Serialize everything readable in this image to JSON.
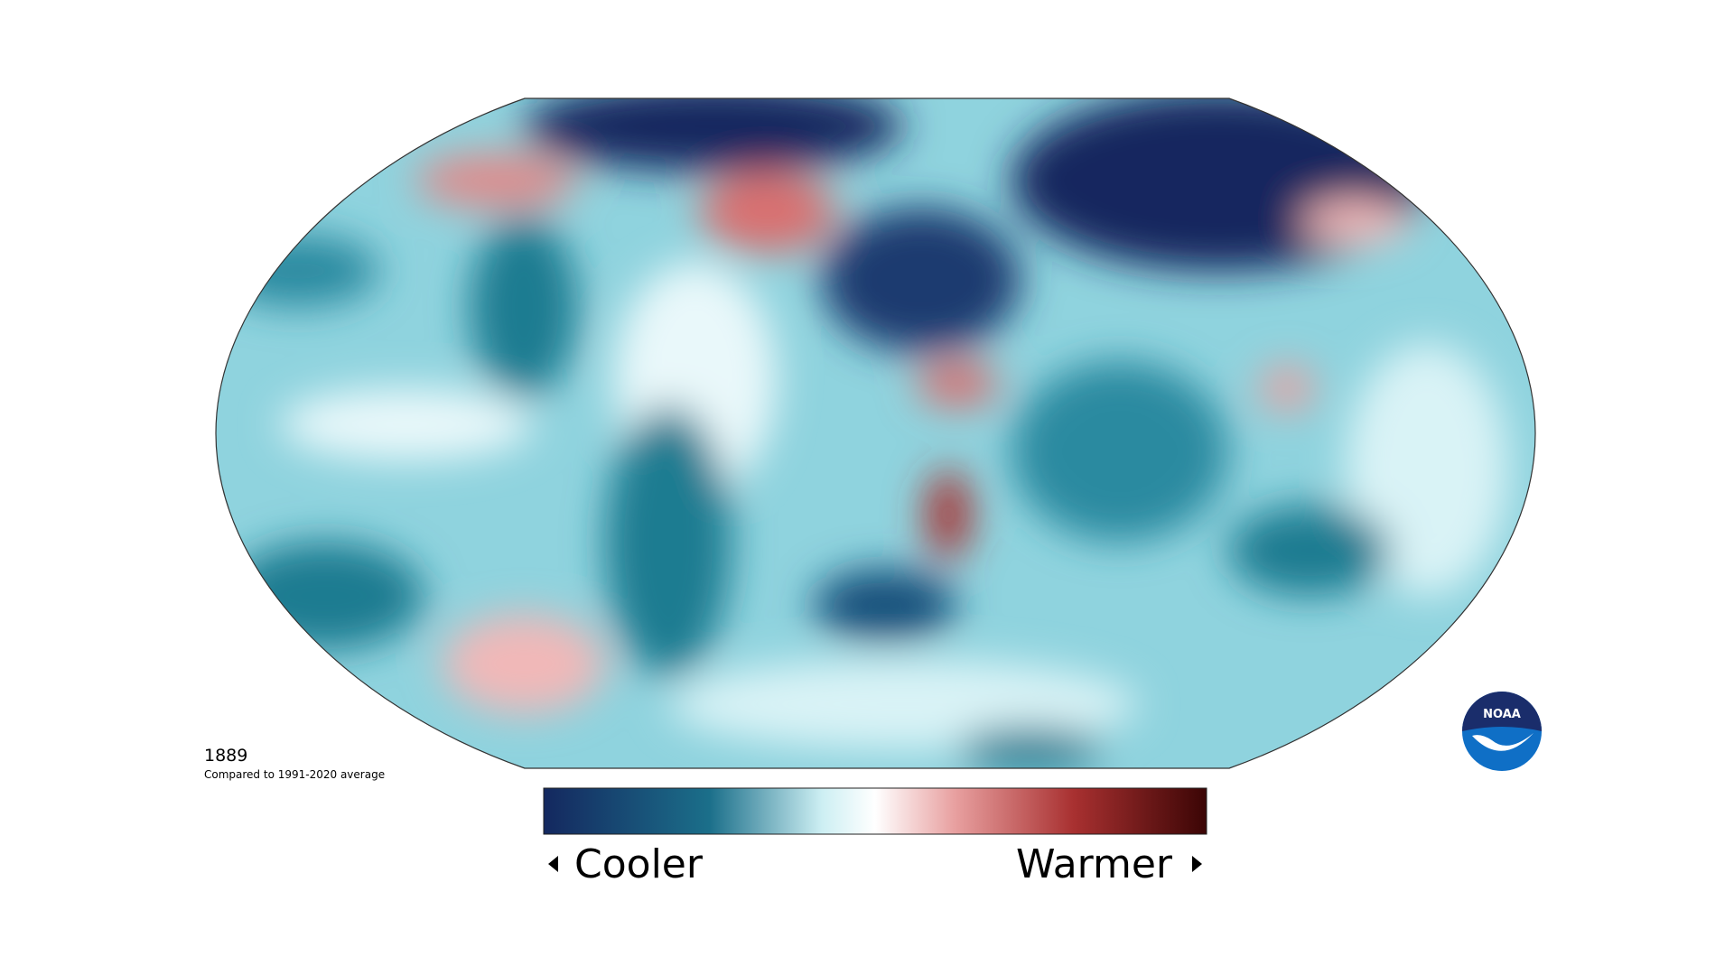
{
  "map": {
    "year": "1889",
    "caption": "Compared to 1991-2020 average"
  },
  "legend": {
    "low": "Cooler",
    "high": "Warmer"
  },
  "logo": {
    "text": "NOAA"
  }
}
